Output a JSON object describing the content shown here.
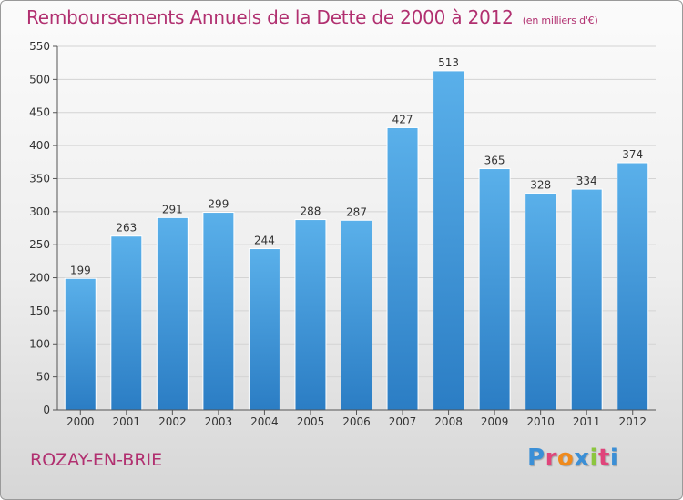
{
  "header": {
    "title": "Remboursements Annuels de la Dette de 2000 à 2012",
    "subtitle": "(en milliers d'€)"
  },
  "footer": {
    "city": "ROZAY-EN-BRIE",
    "logo_letters": [
      "P",
      "r",
      "o",
      "x",
      "i",
      "t",
      "i"
    ],
    "logo_colors": [
      "#3b8fd6",
      "#e0457b",
      "#f08a1c",
      "#3b8fd6",
      "#8cc63f",
      "#e0457b",
      "#3b8fd6"
    ]
  },
  "colors": {
    "title": "#b13070",
    "bar_top": "#5ab0ea",
    "bar_bottom": "#2b7dc4",
    "grid": "#d4d4d4",
    "axis": "#555555",
    "label": "#333333"
  },
  "chart_data": {
    "type": "bar",
    "categories": [
      "2000",
      "2001",
      "2002",
      "2003",
      "2004",
      "2005",
      "2006",
      "2007",
      "2008",
      "2009",
      "2010",
      "2011",
      "2012"
    ],
    "values": [
      199,
      263,
      291,
      299,
      244,
      288,
      287,
      427,
      513,
      365,
      328,
      334,
      374
    ],
    "title": "Remboursements Annuels de la Dette de 2000 à 2012",
    "subtitle": "(en milliers d'€)",
    "xlabel": "",
    "ylabel": "",
    "ylim": [
      0,
      550
    ],
    "yticks": [
      0,
      50,
      100,
      150,
      200,
      250,
      300,
      350,
      400,
      450,
      500,
      550
    ],
    "grid": true,
    "data_labels": true,
    "legend": "none"
  }
}
